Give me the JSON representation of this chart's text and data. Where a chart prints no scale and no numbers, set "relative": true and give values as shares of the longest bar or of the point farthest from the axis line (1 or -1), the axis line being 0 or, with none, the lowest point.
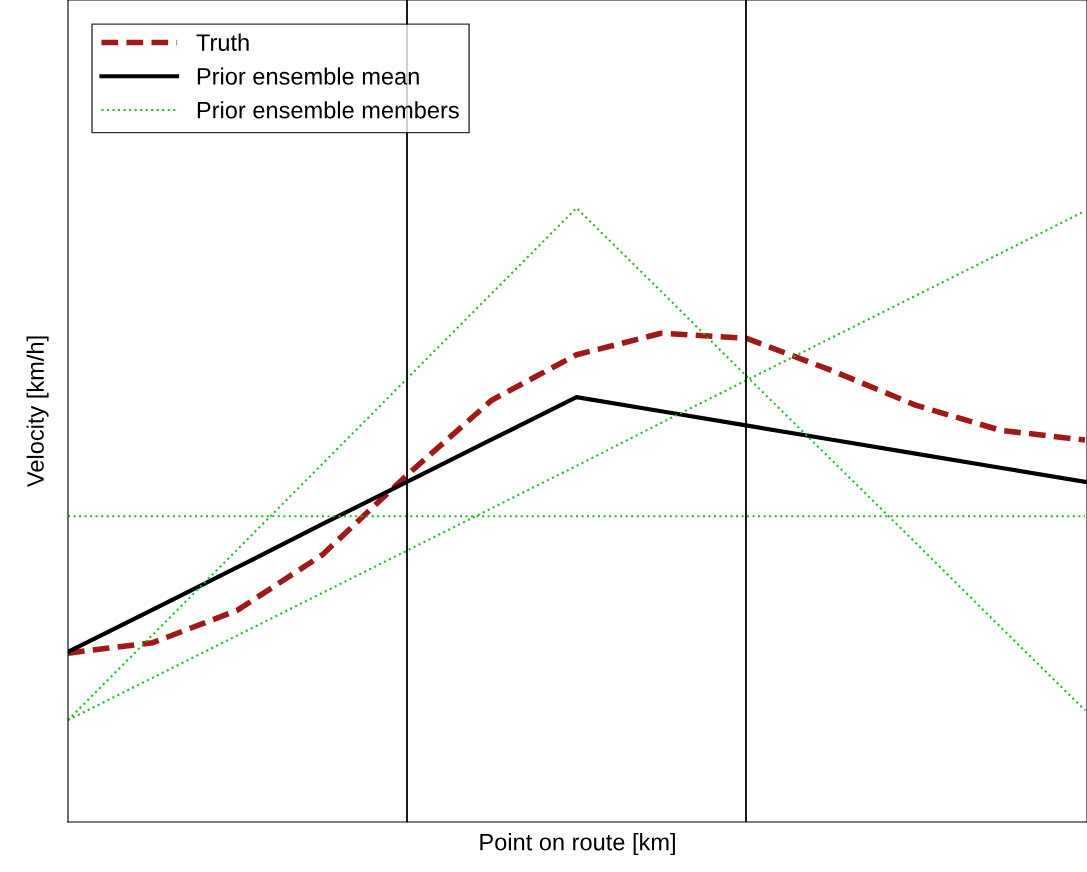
{
  "chart_data": {
    "type": "line",
    "relative": true,
    "xlabel": "Point on route [km]",
    "ylabel": "Velocity [km/h]",
    "categories": [
      null,
      null,
      null,
      null,
      null,
      null,
      null,
      null,
      null,
      null,
      null,
      null,
      null
    ],
    "legend": "top left",
    "marker": "none",
    "series": [
      {
        "name": "Truth",
        "color": "#a01818",
        "line_style": "dashed",
        "values": [
          0.275,
          0.292,
          0.345,
          0.435,
          0.565,
          0.687,
          0.761,
          0.796,
          0.788,
          0.736,
          0.679,
          0.638,
          0.622
        ]
      },
      {
        "name": "Prior ensemble mean",
        "color": "#000000",
        "line_style": "solid",
        "values": [
          0.277,
          0.346,
          0.415,
          0.485,
          0.554,
          0.623,
          0.692,
          0.669,
          0.646,
          0.623,
          0.6,
          0.577,
          0.554
        ]
      },
      {
        "name": "Prior ensemble members",
        "color": "#22bb22",
        "line_style": "dotted",
        "values": [
          0.498,
          0.498,
          0.498,
          0.498,
          0.498,
          0.498,
          0.498,
          0.498,
          0.498,
          0.498,
          0.498,
          0.498,
          0.498
        ]
      },
      {
        "color": "#22bb22",
        "line_style": "dotted",
        "values": [
          0.166,
          0.235,
          0.304,
          0.373,
          0.442,
          0.511,
          0.58,
          0.65,
          0.719,
          0.788,
          0.857,
          0.926,
          0.995
        ]
      },
      {
        "color": "#22bb22",
        "line_style": "dotted",
        "values": [
          0.166,
          0.305,
          0.444,
          0.583,
          0.722,
          0.861,
          1.0,
          0.864,
          0.727,
          0.591,
          0.455,
          0.318,
          0.182
        ]
      }
    ]
  }
}
